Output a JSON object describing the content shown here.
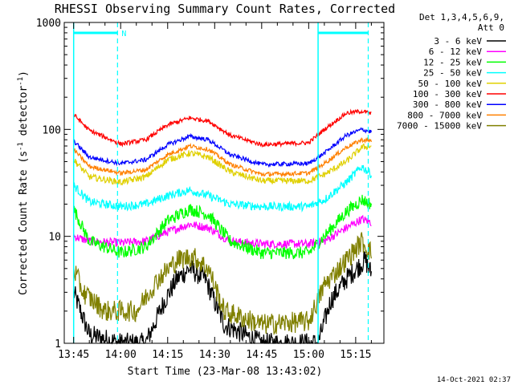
{
  "chart_data": {
    "type": "line",
    "title": "RHESSI Observing Summary Count Rates, Corrected",
    "xlabel": "Start Time (23-Mar-08 13:43:02)",
    "ylabel_main": "Corrected Count Rate (s",
    "ylabel_sup1": "-1",
    "ylabel_mid": " detector",
    "ylabel_sup2": "-1",
    "ylabel_end": ")",
    "yscale": "log",
    "ylim": [
      1,
      1000
    ],
    "yticks": [
      {
        "value": 1,
        "label": "1"
      },
      {
        "value": 10,
        "label": "10"
      },
      {
        "value": 100,
        "label": "100"
      },
      {
        "value": 1000,
        "label": "1000"
      }
    ],
    "xlim": [
      "13:42",
      "15:24"
    ],
    "xticks": [
      "13:45",
      "14:00",
      "14:15",
      "14:30",
      "14:45",
      "15:00",
      "15:15"
    ],
    "legend": {
      "placement": "right",
      "header1": "Det 1,3,4,5,6,9,",
      "header2": "Att 0"
    },
    "annotations": {
      "n_marker": "N",
      "timestamp": "14-Oct-2021 02:37"
    },
    "intervals": [
      {
        "type": "night",
        "start": "13:45",
        "end": "13:59"
      },
      {
        "type": "night",
        "start": "15:03",
        "end": "15:19"
      }
    ],
    "series": [
      {
        "name": "3 - 6 keV",
        "color": "#000000",
        "jitter": 0.1,
        "points": [
          [
            "13:45",
            3
          ],
          [
            "13:50",
            1.2
          ],
          [
            "14:00",
            1
          ],
          [
            "14:08",
            1
          ],
          [
            "14:14",
            2.5
          ],
          [
            "14:18",
            4
          ],
          [
            "14:22",
            5
          ],
          [
            "14:27",
            4
          ],
          [
            "14:33",
            1.5
          ],
          [
            "14:45",
            1
          ],
          [
            "14:57",
            1
          ],
          [
            "15:03",
            1
          ],
          [
            "15:07",
            2.5
          ],
          [
            "15:12",
            4
          ],
          [
            "15:18",
            6
          ],
          [
            "15:20",
            4.5
          ]
        ]
      },
      {
        "name": "6 - 12 keV",
        "color": "#ff00ff",
        "jitter": 0.04,
        "points": [
          [
            "13:45",
            10
          ],
          [
            "13:50",
            9
          ],
          [
            "14:00",
            8.7
          ],
          [
            "14:08",
            9
          ],
          [
            "14:15",
            11
          ],
          [
            "14:22",
            13
          ],
          [
            "14:28",
            12
          ],
          [
            "14:35",
            9
          ],
          [
            "14:45",
            8.5
          ],
          [
            "15:00",
            8.5
          ],
          [
            "15:05",
            9
          ],
          [
            "15:12",
            12
          ],
          [
            "15:17",
            14.5
          ],
          [
            "15:20",
            13.5
          ]
        ]
      },
      {
        "name": "12 - 25 keV",
        "color": "#00ff00",
        "jitter": 0.06,
        "points": [
          [
            "13:45",
            18
          ],
          [
            "13:50",
            9
          ],
          [
            "14:00",
            7
          ],
          [
            "14:08",
            8
          ],
          [
            "14:15",
            14
          ],
          [
            "14:22",
            18
          ],
          [
            "14:28",
            16
          ],
          [
            "14:35",
            9
          ],
          [
            "14:45",
            7
          ],
          [
            "15:00",
            7
          ],
          [
            "15:05",
            10
          ],
          [
            "15:12",
            17
          ],
          [
            "15:17",
            22
          ],
          [
            "15:20",
            20
          ]
        ]
      },
      {
        "name": "25 - 50 keV",
        "color": "#00ffff",
        "jitter": 0.04,
        "points": [
          [
            "13:45",
            30
          ],
          [
            "13:50",
            21
          ],
          [
            "14:00",
            19
          ],
          [
            "14:08",
            20
          ],
          [
            "14:15",
            24
          ],
          [
            "14:22",
            27
          ],
          [
            "14:28",
            24
          ],
          [
            "14:35",
            20
          ],
          [
            "14:45",
            19
          ],
          [
            "15:00",
            19
          ],
          [
            "15:05",
            22
          ],
          [
            "15:12",
            32
          ],
          [
            "15:17",
            45
          ],
          [
            "15:20",
            38
          ]
        ]
      },
      {
        "name": "50 - 100 keV",
        "color": "#e0d000",
        "jitter": 0.03,
        "points": [
          [
            "13:45",
            52
          ],
          [
            "13:50",
            36
          ],
          [
            "14:00",
            32
          ],
          [
            "14:08",
            36
          ],
          [
            "14:15",
            52
          ],
          [
            "14:22",
            60
          ],
          [
            "14:28",
            55
          ],
          [
            "14:35",
            40
          ],
          [
            "14:45",
            33
          ],
          [
            "15:00",
            33
          ],
          [
            "15:05",
            38
          ],
          [
            "15:12",
            50
          ],
          [
            "15:17",
            68
          ],
          [
            "15:20",
            70
          ]
        ]
      },
      {
        "name": "100 - 300 keV",
        "color": "#ff0000",
        "jitter": 0.02,
        "points": [
          [
            "13:45",
            138
          ],
          [
            "13:50",
            98
          ],
          [
            "14:00",
            73
          ],
          [
            "14:08",
            80
          ],
          [
            "14:15",
            110
          ],
          [
            "14:22",
            128
          ],
          [
            "14:28",
            120
          ],
          [
            "14:35",
            88
          ],
          [
            "14:45",
            72
          ],
          [
            "15:00",
            75
          ],
          [
            "15:05",
            100
          ],
          [
            "15:12",
            142
          ],
          [
            "15:17",
            148
          ],
          [
            "15:20",
            140
          ]
        ]
      },
      {
        "name": "300 - 800 keV",
        "color": "#0000ff",
        "jitter": 0.02,
        "points": [
          [
            "13:45",
            78
          ],
          [
            "13:50",
            55
          ],
          [
            "14:00",
            48
          ],
          [
            "14:08",
            52
          ],
          [
            "14:15",
            72
          ],
          [
            "14:22",
            86
          ],
          [
            "14:28",
            80
          ],
          [
            "14:35",
            58
          ],
          [
            "14:45",
            47
          ],
          [
            "15:00",
            48
          ],
          [
            "15:05",
            60
          ],
          [
            "15:12",
            88
          ],
          [
            "15:17",
            100
          ],
          [
            "15:20",
            95
          ]
        ]
      },
      {
        "name": "800 - 7000 keV",
        "color": "#ff8000",
        "jitter": 0.02,
        "points": [
          [
            "13:45",
            65
          ],
          [
            "13:50",
            45
          ],
          [
            "14:00",
            39
          ],
          [
            "14:08",
            42
          ],
          [
            "14:15",
            58
          ],
          [
            "14:22",
            70
          ],
          [
            "14:28",
            65
          ],
          [
            "14:35",
            47
          ],
          [
            "14:45",
            38
          ],
          [
            "15:00",
            39
          ],
          [
            "15:05",
            48
          ],
          [
            "15:12",
            68
          ],
          [
            "15:17",
            80
          ],
          [
            "15:20",
            78
          ]
        ]
      },
      {
        "name": "7000 - 15000 keV",
        "color": "#808000",
        "jitter": 0.1,
        "points": [
          [
            "13:45",
            5
          ],
          [
            "13:48",
            3
          ],
          [
            "13:55",
            2
          ],
          [
            "14:05",
            2
          ],
          [
            "14:12",
            4
          ],
          [
            "14:18",
            6
          ],
          [
            "14:23",
            6.5
          ],
          [
            "14:28",
            5
          ],
          [
            "14:33",
            2
          ],
          [
            "14:45",
            1.5
          ],
          [
            "15:00",
            1.6
          ],
          [
            "15:05",
            3.5
          ],
          [
            "15:12",
            6
          ],
          [
            "15:17",
            9
          ],
          [
            "15:20",
            7
          ]
        ]
      }
    ]
  }
}
